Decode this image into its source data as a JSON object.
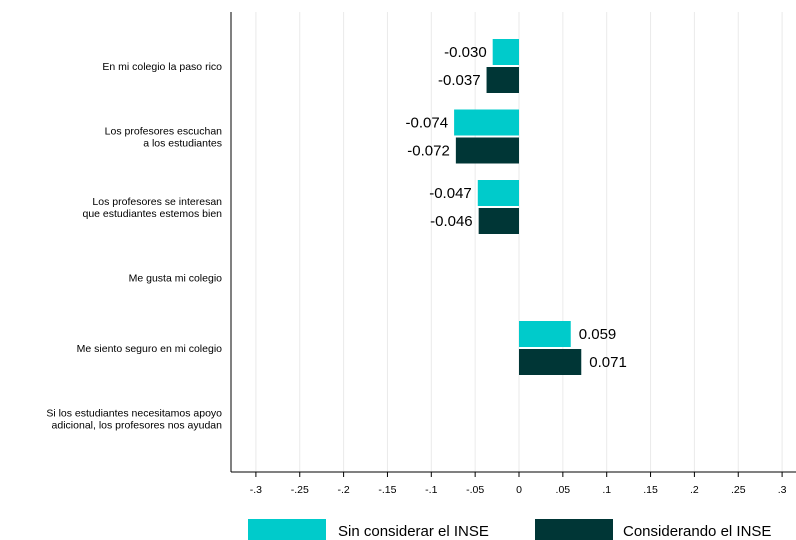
{
  "chart_data": {
    "type": "bar",
    "orientation": "horizontal",
    "categories": [
      [
        "En mi colegio la paso rico"
      ],
      [
        "Los profesores escuchan",
        "a los estudiantes"
      ],
      [
        "Los profesores se interesan",
        "que estudiantes estemos bien"
      ],
      [
        "Me gusta mi colegio"
      ],
      [
        "Me siento seguro en mi colegio"
      ],
      [
        "Si los estudiantes necesitamos apoyo",
        "adicional, los profesores nos ayudan"
      ]
    ],
    "series": [
      {
        "name": "Sin considerar el INSE",
        "color": "#00CBCB",
        "values": [
          -0.03,
          -0.074,
          -0.047,
          null,
          0.059,
          null
        ],
        "labels": [
          "-0.030",
          "-0.074",
          "-0.047",
          "",
          "0.059",
          ""
        ]
      },
      {
        "name": "Considerando el INSE",
        "color": "#003636",
        "values": [
          -0.037,
          -0.072,
          -0.046,
          null,
          0.071,
          null
        ],
        "labels": [
          "-0.037",
          "-0.072",
          "-0.046",
          "",
          "0.071",
          ""
        ]
      }
    ],
    "xlim": [
      -0.3,
      0.3
    ],
    "xticks": [
      -0.3,
      -0.25,
      -0.2,
      -0.15,
      -0.1,
      -0.05,
      0,
      0.05,
      0.1,
      0.15,
      0.2,
      0.25,
      0.3
    ],
    "xtick_labels": [
      "-.3",
      "-.25",
      "-.2",
      "-.15",
      "-.1",
      "-.05",
      "0",
      ".05",
      ".1",
      ".15",
      ".2",
      ".25",
      ".3"
    ],
    "grid": "vertical",
    "legend_position": "bottom",
    "gridline_color": "#EAEAEA"
  }
}
